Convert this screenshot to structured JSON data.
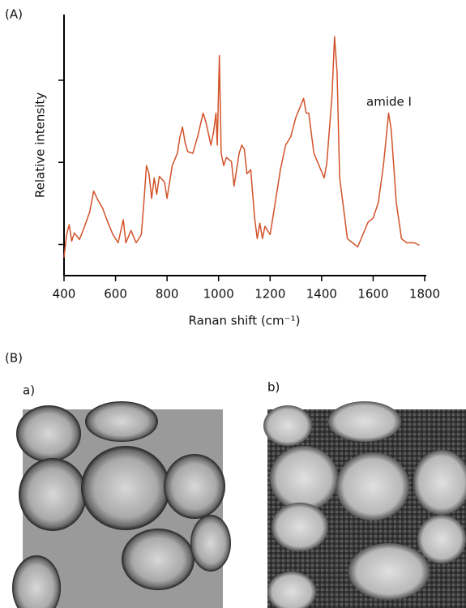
{
  "chart_data": {
    "type": "line",
    "panel_label": "(A)",
    "x_label": "Ranan shift (cm⁻¹)",
    "y_label": "Relative intensity",
    "annotation": "amide I",
    "xlim": [
      400,
      1800
    ],
    "xticks": [
      400,
      600,
      800,
      1000,
      1200,
      1400,
      1600,
      1800
    ],
    "ylim": [
      0.62,
      3.8
    ],
    "yticks": [
      1,
      2,
      3
    ],
    "x": [
      400,
      410,
      420,
      430,
      440,
      460,
      480,
      500,
      515,
      530,
      550,
      570,
      590,
      610,
      630,
      640,
      660,
      680,
      700,
      710,
      720,
      730,
      740,
      750,
      760,
      770,
      790,
      800,
      820,
      840,
      850,
      860,
      870,
      880,
      900,
      920,
      940,
      950,
      960,
      970,
      980,
      990,
      995,
      1003,
      1010,
      1020,
      1030,
      1050,
      1060,
      1080,
      1090,
      1100,
      1110,
      1125,
      1140,
      1150,
      1160,
      1170,
      1180,
      1200,
      1220,
      1240,
      1260,
      1280,
      1300,
      1320,
      1330,
      1340,
      1350,
      1370,
      1390,
      1410,
      1420,
      1440,
      1450,
      1460,
      1470,
      1490,
      1500,
      1520,
      1540,
      1560,
      1580,
      1600,
      1620,
      1640,
      1660,
      1670,
      1690,
      1710,
      1730,
      1760,
      1780
    ],
    "series": [
      {
        "color": "#d2522a",
        "values": [
          0.84,
          1.12,
          1.24,
          1.04,
          1.14,
          1.06,
          1.22,
          1.4,
          1.65,
          1.55,
          1.44,
          1.27,
          1.12,
          1.02,
          1.3,
          1.02,
          1.17,
          1.02,
          1.12,
          1.51,
          1.96,
          1.86,
          1.56,
          1.81,
          1.61,
          1.83,
          1.76,
          1.56,
          1.96,
          2.11,
          2.31,
          2.43,
          2.24,
          2.13,
          2.11,
          2.33,
          2.6,
          2.5,
          2.36,
          2.21,
          2.36,
          2.6,
          2.21,
          3.3,
          2.11,
          1.96,
          2.06,
          2.01,
          1.71,
          2.11,
          2.21,
          2.16,
          1.86,
          1.91,
          1.32,
          1.07,
          1.26,
          1.07,
          1.22,
          1.12,
          1.51,
          1.91,
          2.21,
          2.31,
          2.55,
          2.7,
          2.78,
          2.6,
          2.6,
          2.11,
          1.96,
          1.81,
          1.99,
          2.8,
          3.53,
          3.1,
          1.81,
          1.32,
          1.07,
          1.02,
          0.97,
          1.12,
          1.27,
          1.32,
          1.51,
          1.96,
          2.6,
          2.4,
          1.51,
          1.07,
          1.02,
          1.02,
          0.99
        ]
      }
    ]
  },
  "panel_b": {
    "label": "(B)",
    "image_a_label": "a)",
    "image_b_label": "b)"
  }
}
